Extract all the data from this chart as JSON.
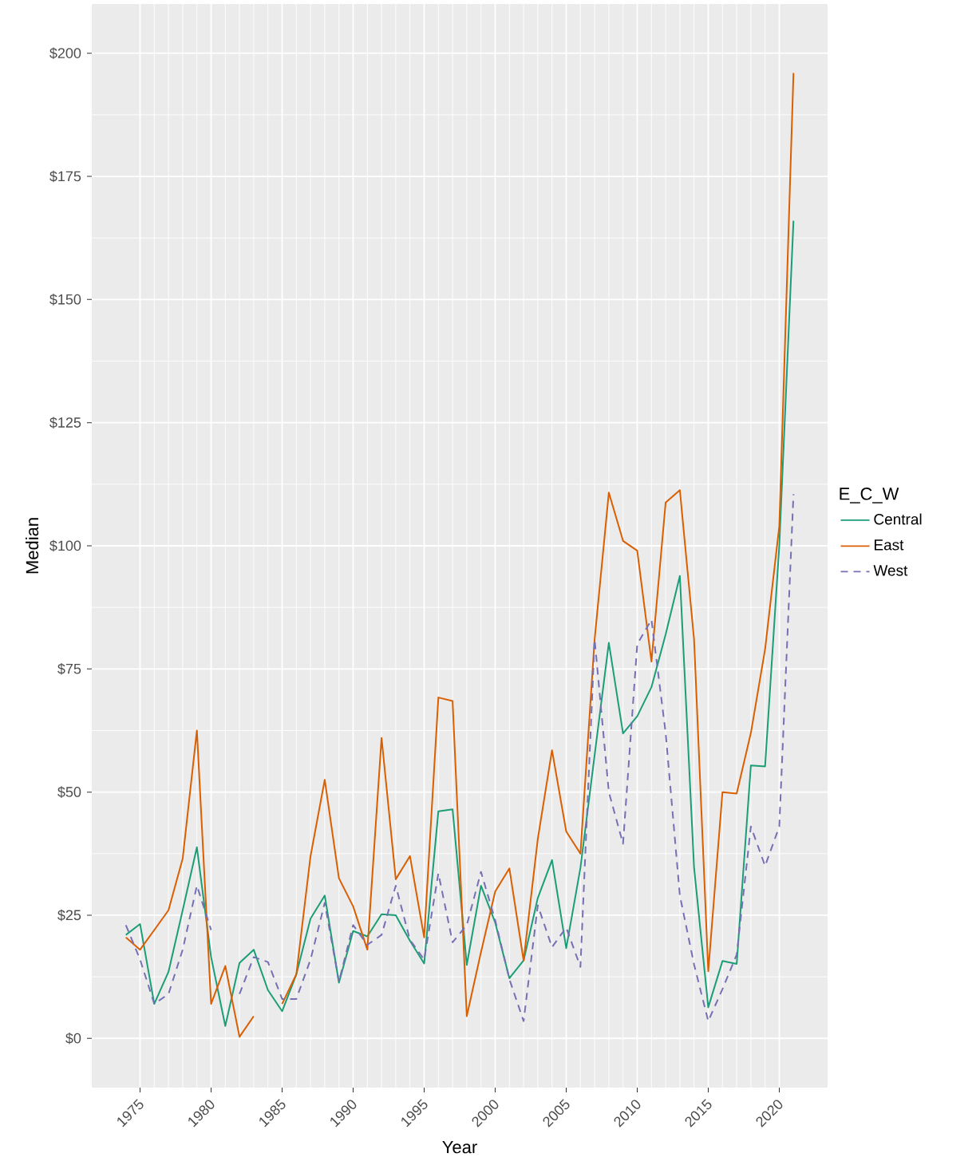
{
  "chart_data": {
    "type": "line",
    "xlabel": "Year",
    "ylabel": "Median",
    "legend_title": "E_C_W",
    "legend": "right",
    "grid": true,
    "marker": "none",
    "x": [
      1974,
      1975,
      1976,
      1977,
      1978,
      1979,
      1980,
      1981,
      1982,
      1983,
      1984,
      1985,
      1986,
      1987,
      1988,
      1989,
      1990,
      1991,
      1992,
      1993,
      1994,
      1995,
      1996,
      1997,
      1998,
      1999,
      2000,
      2001,
      2002,
      2003,
      2004,
      2005,
      2006,
      2007,
      2008,
      2009,
      2010,
      2011,
      2012,
      2013,
      2014,
      2015,
      2016,
      2017,
      2018,
      2019,
      2020,
      2021
    ],
    "xlim": [
      1971.6,
      2023.4
    ],
    "xticks": [
      1975,
      1980,
      1985,
      1990,
      1995,
      2000,
      2005,
      2010,
      2015,
      2020
    ],
    "ylim": [
      -10,
      210
    ],
    "yticks": [
      {
        "value": 0,
        "label": "$0"
      },
      {
        "value": 25,
        "label": "$25"
      },
      {
        "value": 50,
        "label": "$50"
      },
      {
        "value": 75,
        "label": "$75"
      },
      {
        "value": 100,
        "label": "$100"
      },
      {
        "value": 125,
        "label": "$125"
      },
      {
        "value": 150,
        "label": "$150"
      },
      {
        "value": 175,
        "label": "$175"
      },
      {
        "value": 200,
        "label": "$200"
      }
    ],
    "series": [
      {
        "name": "Central",
        "color": "#1b9e77",
        "line_style": "solid",
        "values": [
          21,
          23.2,
          7,
          13.5,
          26,
          38.8,
          16.5,
          2.5,
          15.3,
          18,
          9.8,
          5.5,
          13,
          24.3,
          29,
          11.3,
          21.8,
          20.7,
          25.2,
          25,
          19.8,
          15.2,
          46.1,
          46.5,
          14.9,
          31,
          23.5,
          12.2,
          15.8,
          28.5,
          36.2,
          18.3,
          34.6,
          57.5,
          80.3,
          61.9,
          65.4,
          71.3,
          82,
          93.9,
          34.7,
          6.3,
          15.7,
          15.1,
          55.4,
          55.2,
          100,
          166
        ]
      },
      {
        "name": "East",
        "color": "#d95f02",
        "line_style": "solid",
        "values": [
          20.5,
          18,
          22,
          26,
          36.5,
          62.5,
          7,
          14.7,
          0.3,
          4.5,
          null,
          7,
          13,
          37,
          52.5,
          32.5,
          26.8,
          18,
          61,
          32.3,
          37,
          20.5,
          69.2,
          68.5,
          4.5,
          17.5,
          29.8,
          34.5,
          15.8,
          40.5,
          58.5,
          42,
          37.5,
          81,
          110.8,
          101,
          99,
          76.5,
          108.8,
          111.3,
          81,
          13.6,
          50,
          49.7,
          62,
          79,
          104,
          196
        ]
      },
      {
        "name": "West",
        "color": "#7570b3",
        "line_style": "dashed",
        "values": [
          23,
          16,
          7,
          9,
          18,
          31,
          22,
          null,
          9,
          16.5,
          15.5,
          8,
          8,
          16,
          27.5,
          11.5,
          23,
          19,
          21,
          31,
          20,
          16,
          33.5,
          19.5,
          23,
          33.8,
          24,
          12,
          3.5,
          27,
          18.5,
          22.5,
          14.5,
          81,
          50,
          39.5,
          80,
          85,
          62,
          29,
          15,
          3.5,
          10,
          17,
          43,
          35,
          43,
          110.5
        ]
      }
    ]
  }
}
